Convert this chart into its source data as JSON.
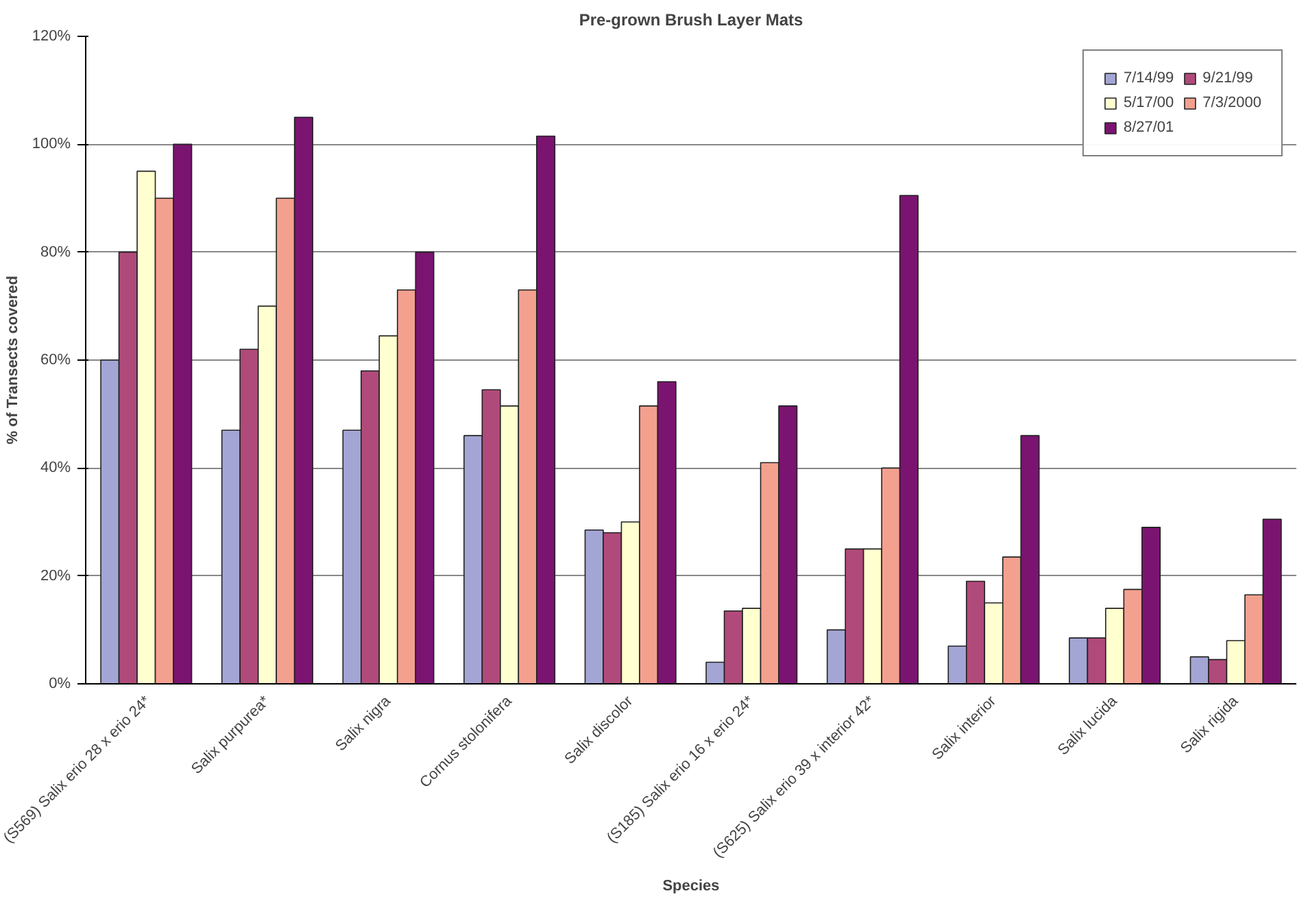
{
  "chart_data": {
    "type": "bar",
    "title": "Pre-grown Brush Layer Mats",
    "xlabel": "Species",
    "ylabel": "% of Transects covered",
    "categories": [
      "(S569) Salix erio 28 x erio 24*",
      "Salix purpurea*",
      "Salix nigra",
      "Cornus stolonifera",
      "Salix discolor",
      "(S185) Salix erio 16 x erio 24*",
      "(S625) Salix erio 39 x interior 42*",
      "Salix interior",
      "Salix lucida",
      "Salix rigida"
    ],
    "series": [
      {
        "name": "7/14/99",
        "color": "#a3a6d4",
        "values": [
          60,
          47,
          47,
          46,
          28.5,
          4,
          10,
          7,
          8.5,
          5
        ]
      },
      {
        "name": "9/21/99",
        "color": "#b04a7a",
        "values": [
          80,
          62,
          58,
          54.5,
          28,
          13.5,
          25,
          19,
          8.5,
          4.5
        ]
      },
      {
        "name": "5/17/00",
        "color": "#ffffd0",
        "values": [
          95,
          70,
          64.5,
          51.5,
          30,
          14,
          25,
          15,
          14,
          8
        ]
      },
      {
        "name": "7/3/2000",
        "color": "#f4a08f",
        "values": [
          90,
          90,
          73,
          73,
          51.5,
          41,
          40,
          23.5,
          17.5,
          16.5
        ]
      },
      {
        "name": "8/27/01",
        "color": "#7a1470",
        "values": [
          100,
          105,
          80,
          101.5,
          56,
          51.5,
          90.5,
          46,
          29,
          30.5
        ]
      }
    ],
    "ylim": [
      0,
      120
    ],
    "yticks": [
      {
        "value": 0,
        "label": "0%"
      },
      {
        "value": 20,
        "label": "20%"
      },
      {
        "value": 40,
        "label": "40%"
      },
      {
        "value": 60,
        "label": "60%"
      },
      {
        "value": 80,
        "label": "80%"
      },
      {
        "value": 100,
        "label": "100%"
      },
      {
        "value": 120,
        "label": "120%"
      }
    ],
    "grid": "y",
    "legend": "top right"
  }
}
